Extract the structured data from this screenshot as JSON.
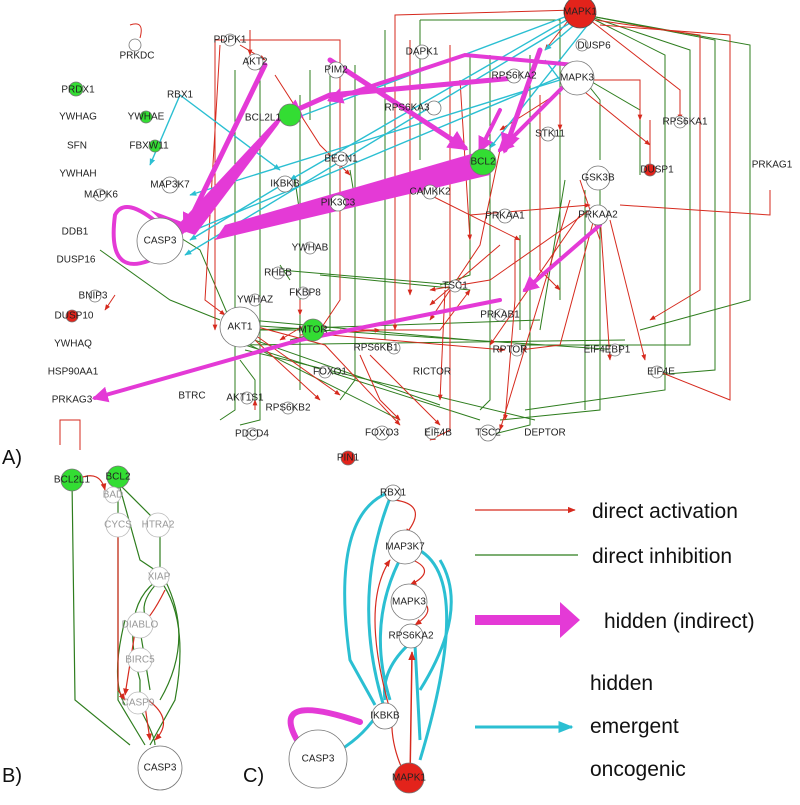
{
  "panels": {
    "a": "A)",
    "b": "B)",
    "c": "C)"
  },
  "legend": {
    "activation": "direct activation",
    "inhibition": "direct inhibition",
    "hidden": "hidden (indirect)",
    "emergent_1": "hidden",
    "emergent_2": "emergent",
    "emergent_3": "oncogenic"
  },
  "colors": {
    "activation": "#d62a1e",
    "inhibition": "#2e7d1e",
    "hidden": "#e43ad6",
    "emergent": "#2bbfd2",
    "node_red": "#e3231b",
    "node_green": "#33dd33",
    "node_white": "#ffffff"
  },
  "nodes_a": {
    "MAPK1": "MAPK1",
    "PRKDC": "PRKDC",
    "PDPK1": "PDPK1",
    "DAPK1": "DAPK1",
    "DUSP6": "DUSP6",
    "PRDX1": "PRDX1",
    "AKT2": "AKT2",
    "PIM2": "PIM2",
    "RPS6KA2": "RPS6KA2",
    "MAPK3": "MAPK3",
    "YWHAG": "YWHAG",
    "YWHAE": "YWHAE",
    "RBX1": "RBX1",
    "BCL2L1": "BCL2L1",
    "RPS6KA3": "RPS6KA3",
    "STK11": "STK11",
    "RPS6KA1": "RPS6KA1",
    "SFN": "SFN",
    "FBXW11": "FBXW11",
    "BCL2": "BCL2",
    "YWHAH": "YWHAH",
    "BECN1": "BECN1",
    "MAP3K7": "MAP3K7",
    "IKBKB": "IKBKB",
    "GSK3B": "GSK3B",
    "DUSP1": "DUSP1",
    "PRKAG1": "PRKAG1",
    "MAPK6": "MAPK6",
    "CAMKK2": "CAMKK2",
    "PIK3C3": "PIK3C3",
    "DDB1": "DDB1",
    "PRKAA1": "PRKAA1",
    "PRKAA2": "PRKAA2",
    "CASP3": "CASP3",
    "DUSP16": "DUSP16",
    "YWHAB": "YWHAB",
    "RHEB": "RHEB",
    "TSC1": "TSC1",
    "BNIP3": "BNIP3",
    "FKBP8": "FKBP8",
    "YWHAZ": "YWHAZ",
    "DUSP10": "DUSP10",
    "PRKAB1": "PRKAB1",
    "AKT1": "AKT1",
    "MTOR": "MTOR",
    "YWHAQ": "YWHAQ",
    "RPS6KB1": "RPS6KB1",
    "RPTOR": "RPTOR",
    "EIF4EBP1": "EIF4EBP1",
    "HSP90AA1": "HSP90AA1",
    "FOXO1": "FOXO1",
    "RICTOR": "RICTOR",
    "EIF4E": "EIF4E",
    "PRKAG3": "PRKAG3",
    "BTRC": "BTRC",
    "AKT1S1": "AKT1S1",
    "RPS6KB2": "RPS6KB2",
    "PDCD4": "PDCD4",
    "FOXO3": "FOXO3",
    "EIF4B": "EIF4B",
    "TSC2": "TSC2",
    "DEPTOR": "DEPTOR",
    "PIN1": "PIN1"
  },
  "nodes_b": {
    "BCL2L1": "BCL2L1",
    "BCL2": "BCL2",
    "BAD": "BAD",
    "CYCS": "CYCS",
    "HTRA2": "HTRA2",
    "XIAP": "XIAP",
    "DIABLO": "DIABLO",
    "BIRC5": "BIRC5",
    "CASP9": "CASP9",
    "CASP3": "CASP3"
  },
  "nodes_c": {
    "RBX1": "RBX1",
    "MAP3K7": "MAP3K7",
    "MAPK3": "MAPK3",
    "RPS6KA2": "RPS6KA2",
    "IKBKB": "IKBKB",
    "CASP3": "CASP3",
    "MAPK1": "MAPK1"
  }
}
